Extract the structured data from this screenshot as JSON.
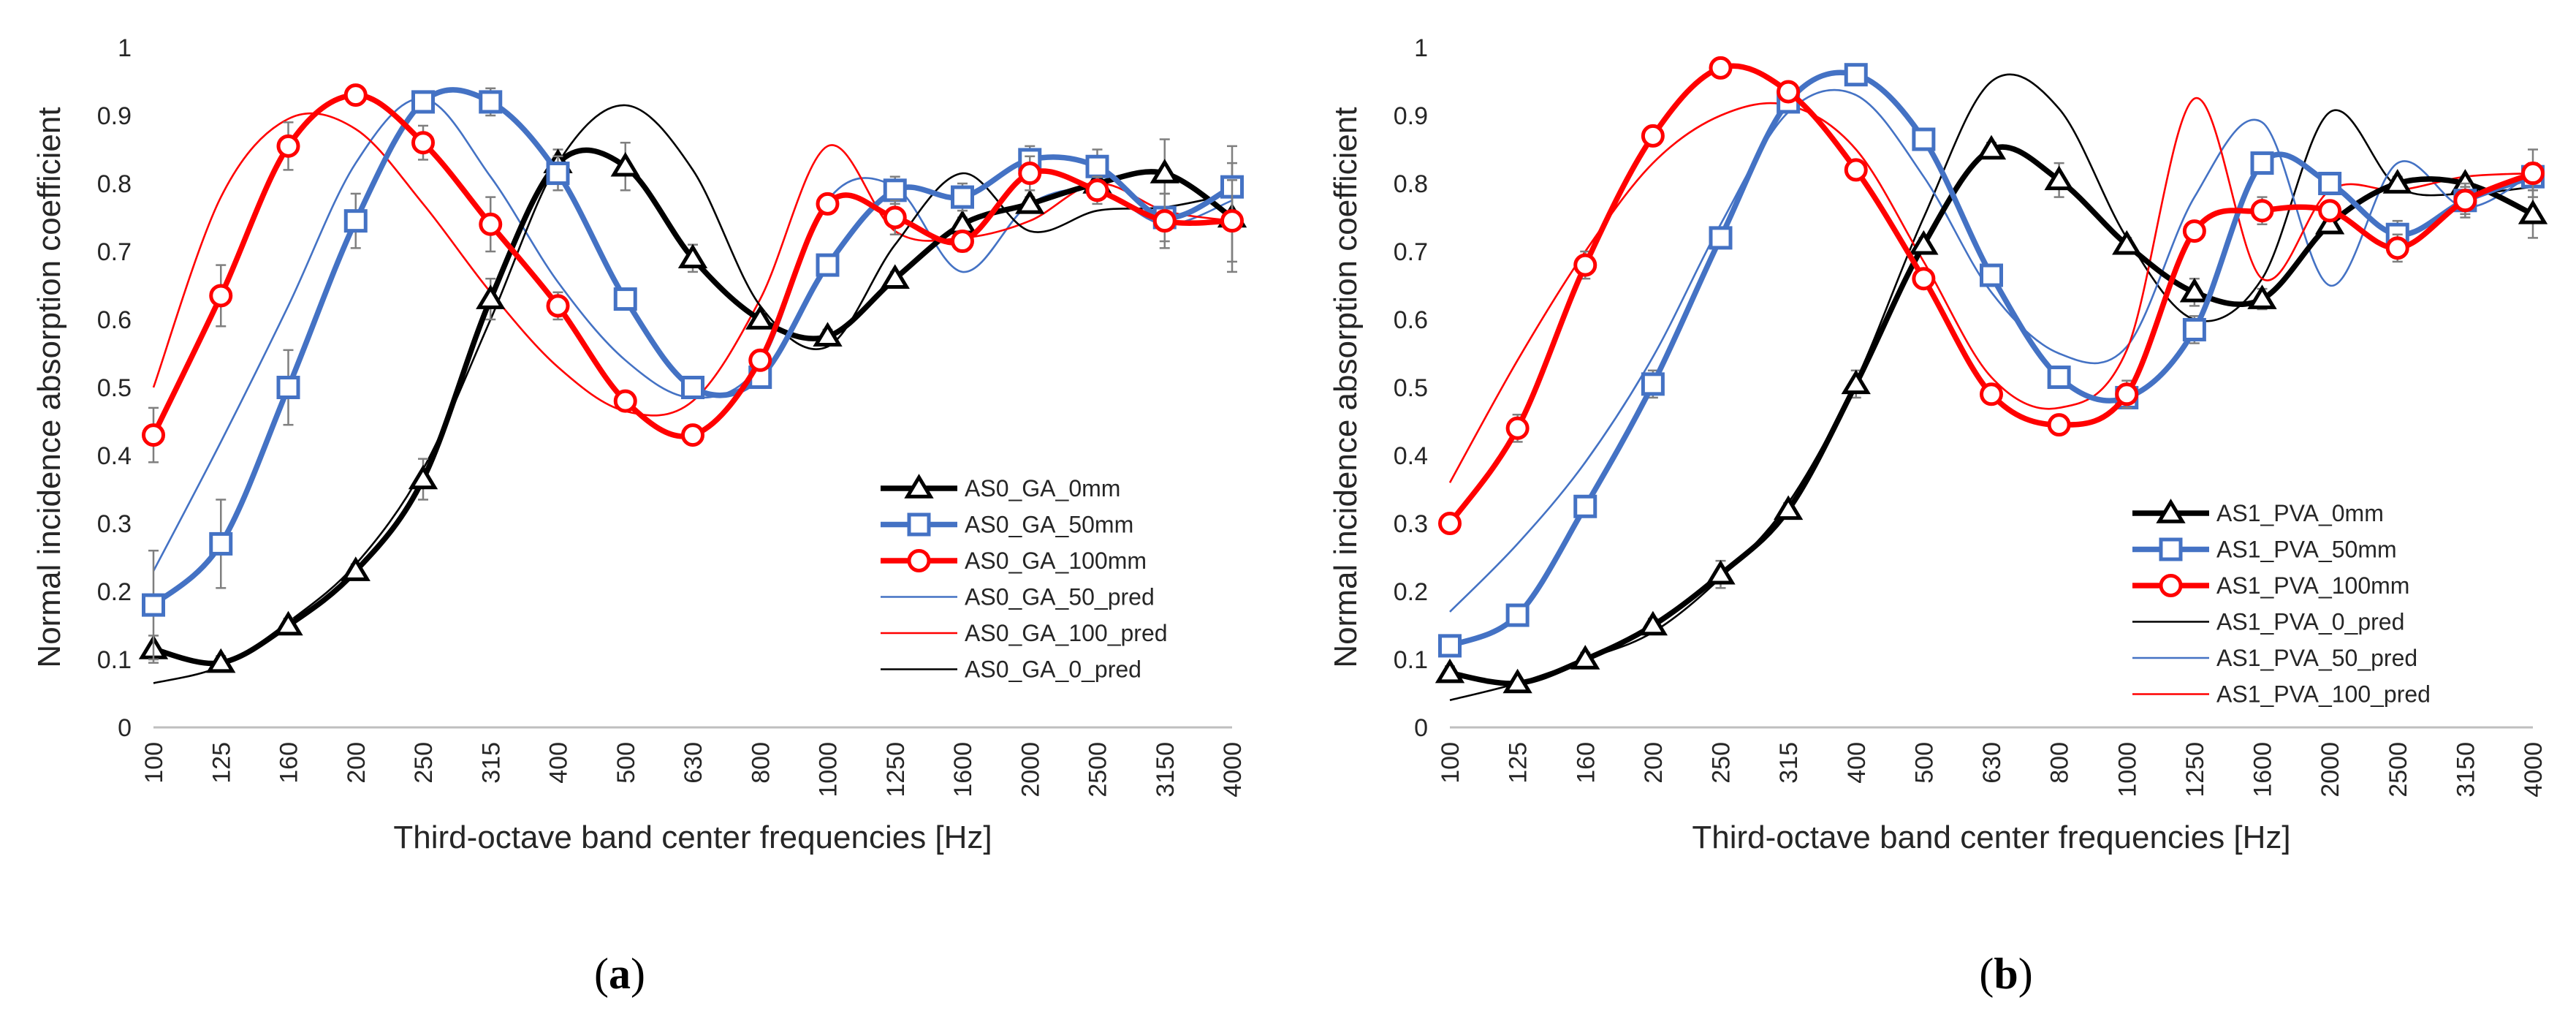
{
  "chart_data": [
    {
      "type": "line",
      "panel_label": "a",
      "xlabel": "Third-octave band center frequencies [Hz]",
      "ylabel": "Normal incidence absorption coefficient",
      "ylim": [
        0,
        1
      ],
      "yticks": [
        "0",
        "0.1",
        "0.2",
        "0.3",
        "0.4",
        "0.5",
        "0.6",
        "0.7",
        "0.8",
        "0.9",
        "1"
      ],
      "categories": [
        "100",
        "125",
        "160",
        "200",
        "250",
        "315",
        "400",
        "500",
        "630",
        "800",
        "1000",
        "1250",
        "1600",
        "2000",
        "2500",
        "3150",
        "4000"
      ],
      "legend_position": "lower-right",
      "grid": false,
      "series": [
        {
          "name": "AS0_GA_0mm",
          "style": "measured",
          "marker": "triangle",
          "color": "#000000",
          "values": [
            0.115,
            0.095,
            0.15,
            0.23,
            0.365,
            0.63,
            0.83,
            0.825,
            0.69,
            0.6,
            0.575,
            0.66,
            0.74,
            0.77,
            0.8,
            0.815,
            0.75
          ],
          "errors": [
            0.02,
            0.01,
            0.01,
            0.01,
            0.03,
            0.03,
            0.02,
            0.035,
            0.02,
            0.01,
            0.01,
            0.01,
            0.01,
            0.01,
            0.01,
            0.05,
            0.08
          ]
        },
        {
          "name": "AS0_GA_50mm",
          "style": "measured",
          "marker": "square",
          "color": "#4472C4",
          "values": [
            0.18,
            0.27,
            0.5,
            0.745,
            0.92,
            0.92,
            0.815,
            0.63,
            0.5,
            0.515,
            0.68,
            0.79,
            0.78,
            0.835,
            0.825,
            0.75,
            0.795
          ],
          "errors": [
            0.08,
            0.065,
            0.055,
            0.04,
            0.01,
            0.02,
            0.025,
            0.01,
            0.01,
            0.01,
            0.01,
            0.02,
            0.02,
            0.02,
            0.025,
            0.035,
            0.06
          ]
        },
        {
          "name": "AS0_GA_100mm",
          "style": "measured",
          "marker": "circle",
          "color": "#FF0000",
          "values": [
            0.43,
            0.635,
            0.855,
            0.93,
            0.86,
            0.74,
            0.62,
            0.48,
            0.43,
            0.54,
            0.77,
            0.75,
            0.715,
            0.815,
            0.79,
            0.745,
            0.745
          ],
          "errors": [
            0.04,
            0.045,
            0.035,
            0.01,
            0.025,
            0.04,
            0.02,
            0.01,
            0.01,
            0.01,
            0.01,
            0.025,
            0.015,
            0.025,
            0.02,
            0.04,
            0.06
          ]
        },
        {
          "name": "AS0_GA_50_pred",
          "style": "predicted",
          "color": "#4472C4",
          "values": [
            0.23,
            0.42,
            0.62,
            0.83,
            0.925,
            0.81,
            0.655,
            0.54,
            0.485,
            0.535,
            0.775,
            0.795,
            0.67,
            0.77,
            0.79,
            0.74,
            0.775
          ]
        },
        {
          "name": "AS0_GA_100_pred",
          "style": "predicted",
          "color": "#FF0000",
          "values": [
            0.5,
            0.78,
            0.895,
            0.88,
            0.77,
            0.64,
            0.53,
            0.465,
            0.48,
            0.63,
            0.855,
            0.73,
            0.72,
            0.745,
            0.8,
            0.76,
            0.745
          ]
        },
        {
          "name": "AS0_GA_0_pred",
          "style": "predicted",
          "color": "#000000",
          "values": [
            0.065,
            0.09,
            0.155,
            0.24,
            0.38,
            0.6,
            0.83,
            0.915,
            0.82,
            0.62,
            0.56,
            0.71,
            0.815,
            0.73,
            0.76,
            0.765,
            0.785
          ]
        }
      ]
    },
    {
      "type": "line",
      "panel_label": "b",
      "xlabel": "Third-octave band center frequencies [Hz]",
      "ylabel": "Normal incidence absorption coefficient",
      "ylim": [
        0,
        1
      ],
      "yticks": [
        "0",
        "0.1",
        "0.2",
        "0.3",
        "0.4",
        "0.5",
        "0.6",
        "0.7",
        "0.8",
        "0.9",
        "1"
      ],
      "categories": [
        "100",
        "125",
        "160",
        "200",
        "250",
        "315",
        "400",
        "500",
        "630",
        "800",
        "1000",
        "1250",
        "1600",
        "2000",
        "2500",
        "3150",
        "4000"
      ],
      "legend_position": "lower-right",
      "grid": false,
      "series": [
        {
          "name": "AS1_PVA_0mm",
          "style": "measured",
          "marker": "triangle",
          "color": "#000000",
          "values": [
            0.08,
            0.065,
            0.1,
            0.15,
            0.225,
            0.32,
            0.505,
            0.71,
            0.85,
            0.805,
            0.71,
            0.64,
            0.63,
            0.74,
            0.8,
            0.8,
            0.755
          ],
          "errors": [
            0.01,
            0.005,
            0.01,
            0.01,
            0.02,
            0.01,
            0.02,
            0.01,
            0.01,
            0.025,
            0.01,
            0.02,
            0.015,
            0.01,
            0.01,
            0.01,
            0.035
          ]
        },
        {
          "name": "AS1_PVA_50mm",
          "style": "measured",
          "marker": "square",
          "color": "#4472C4",
          "values": [
            0.12,
            0.165,
            0.325,
            0.505,
            0.72,
            0.92,
            0.96,
            0.865,
            0.665,
            0.515,
            0.485,
            0.585,
            0.83,
            0.8,
            0.725,
            0.775,
            0.81
          ],
          "errors": [
            0.01,
            0.01,
            0.01,
            0.02,
            0.01,
            0.01,
            0.01,
            0.01,
            0.01,
            0.01,
            0.01,
            0.02,
            0.01,
            0.01,
            0.02,
            0.025,
            0.02
          ]
        },
        {
          "name": "AS1_PVA_100mm",
          "style": "measured",
          "marker": "circle",
          "color": "#FF0000",
          "values": [
            0.3,
            0.44,
            0.68,
            0.87,
            0.97,
            0.935,
            0.82,
            0.66,
            0.49,
            0.445,
            0.49,
            0.73,
            0.76,
            0.76,
            0.705,
            0.775,
            0.815
          ],
          "errors": [
            0.01,
            0.02,
            0.02,
            0.01,
            0.01,
            0.01,
            0.01,
            0.01,
            0.01,
            0.01,
            0.02,
            0.01,
            0.02,
            0.01,
            0.02,
            0.02,
            0.035
          ]
        },
        {
          "name": "AS1_PVA_0_pred",
          "style": "predicted",
          "color": "#000000",
          "values": [
            0.04,
            0.065,
            0.1,
            0.14,
            0.22,
            0.33,
            0.51,
            0.75,
            0.95,
            0.91,
            0.72,
            0.6,
            0.66,
            0.905,
            0.795,
            0.785,
            0.795
          ]
        },
        {
          "name": "AS1_PVA_50_pred",
          "style": "predicted",
          "color": "#4472C4",
          "values": [
            0.17,
            0.27,
            0.39,
            0.545,
            0.74,
            0.905,
            0.93,
            0.81,
            0.64,
            0.55,
            0.56,
            0.78,
            0.89,
            0.65,
            0.83,
            0.765,
            0.815
          ]
        },
        {
          "name": "AS1_PVA_100_pred",
          "style": "predicted",
          "color": "#FF0000",
          "values": [
            0.36,
            0.54,
            0.7,
            0.83,
            0.9,
            0.915,
            0.85,
            0.685,
            0.515,
            0.47,
            0.555,
            0.925,
            0.66,
            0.79,
            0.79,
            0.81,
            0.815
          ]
        }
      ]
    }
  ]
}
